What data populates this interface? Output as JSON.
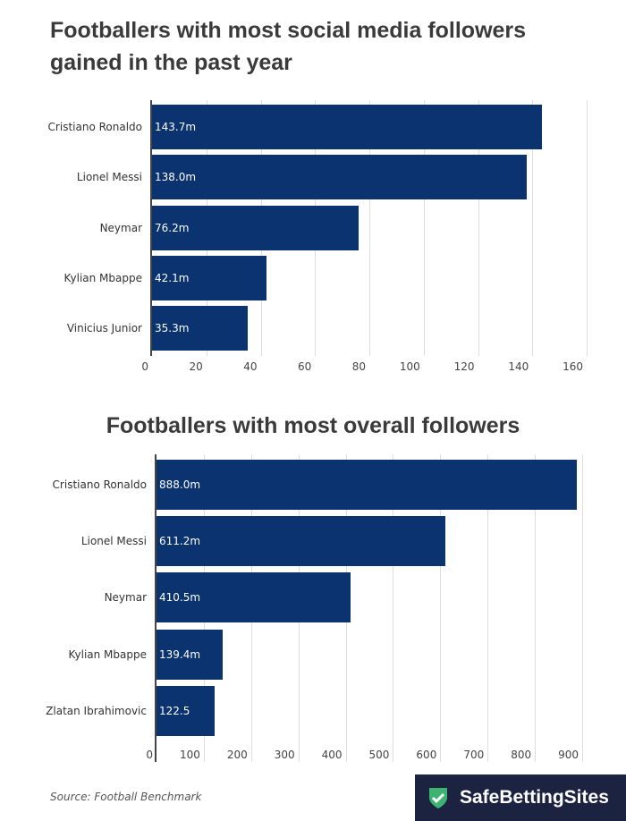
{
  "chart_data": [
    {
      "type": "bar",
      "orientation": "horizontal",
      "title": "Footballers with most social media followers gained in the past year",
      "categories": [
        "Cristiano Ronaldo",
        "Lionel Messi",
        "Neymar",
        "Kylian Mbappe",
        "Vinicius Junior"
      ],
      "values": [
        143.7,
        138.0,
        76.2,
        42.1,
        35.3
      ],
      "labels": [
        "143.7m",
        "138.0m",
        "76.2m",
        "42.1m",
        "35.3m"
      ],
      "ticks": [
        0,
        20,
        40,
        60,
        80,
        100,
        120,
        140,
        160
      ],
      "xlim": [
        0,
        160
      ],
      "grid": true
    },
    {
      "type": "bar",
      "orientation": "horizontal",
      "title": "Footballers with most overall followers",
      "categories": [
        "Cristiano Ronaldo",
        "Lionel Messi",
        "Neymar",
        "Kylian Mbappe",
        "Zlatan Ibrahimovic"
      ],
      "values": [
        888.0,
        611.2,
        410.5,
        139.4,
        122.5
      ],
      "labels": [
        "888.0m",
        "611.2m",
        "410.5m",
        "139.4m",
        "122.5"
      ],
      "ticks": [
        0,
        100,
        200,
        300,
        400,
        500,
        600,
        700,
        800,
        900
      ],
      "xlim": [
        0,
        900
      ],
      "grid": true
    }
  ],
  "source": "Source: Football Benchmark",
  "brand": "SafeBettingSites",
  "colors": {
    "bar": "#0b3370",
    "logo_bg": "#1c2340",
    "shield": "#3cb371"
  }
}
